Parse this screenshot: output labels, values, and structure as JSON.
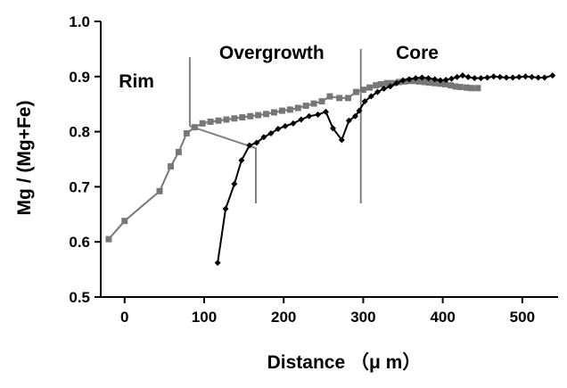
{
  "chart_data": {
    "type": "line",
    "title": "",
    "xlabel": "Distance （μ m）",
    "ylabel": "Mg / (Mg+Fe)",
    "xlim": [
      -30,
      545
    ],
    "ylim": [
      0.5,
      1.0
    ],
    "x_ticks": [
      0,
      100,
      200,
      300,
      400,
      500
    ],
    "x_tick_labels": [
      "0",
      "100",
      "200",
      "300",
      "400",
      "500"
    ],
    "y_ticks": [
      0.5,
      0.6,
      0.7,
      0.8,
      0.9,
      1.0
    ],
    "y_tick_labels": [
      "0.5",
      "0.6",
      "0.7",
      "0.8",
      "0.9",
      "1.0"
    ],
    "grid": false,
    "legend": "none",
    "region_labels": [
      {
        "id": "rim",
        "text": "Rim",
        "x": 15,
        "y": 0.88
      },
      {
        "id": "overgrowth",
        "text": "Overgrowth",
        "x": 185,
        "y": 0.932
      },
      {
        "id": "core",
        "text": "Core",
        "x": 368,
        "y": 0.932
      }
    ],
    "boundary_lines": [
      {
        "id": "rim-overgrowth",
        "points": [
          [
            82,
            0.935
          ],
          [
            82,
            0.81
          ]
        ]
      },
      {
        "id": "rim-overgrowth-trace",
        "points": [
          [
            82,
            0.81
          ],
          [
            165,
            0.77
          ],
          [
            165,
            0.67
          ]
        ]
      },
      {
        "id": "overgrowth-core",
        "points": [
          [
            297,
            0.95
          ],
          [
            297,
            0.67
          ]
        ]
      }
    ],
    "series": [
      {
        "id": "gray-profile",
        "color": "#777777",
        "marker": "square",
        "values": [
          [
            -20,
            0.605
          ],
          [
            0,
            0.638
          ],
          [
            44,
            0.692
          ],
          [
            58,
            0.737
          ],
          [
            68,
            0.763
          ],
          [
            78,
            0.797
          ],
          [
            88,
            0.808
          ],
          [
            98,
            0.815
          ],
          [
            108,
            0.818
          ],
          [
            118,
            0.82
          ],
          [
            128,
            0.822
          ],
          [
            138,
            0.824
          ],
          [
            148,
            0.826
          ],
          [
            158,
            0.828
          ],
          [
            168,
            0.83
          ],
          [
            178,
            0.832
          ],
          [
            188,
            0.835
          ],
          [
            198,
            0.838
          ],
          [
            208,
            0.84
          ],
          [
            218,
            0.843
          ],
          [
            228,
            0.847
          ],
          [
            238,
            0.851
          ],
          [
            248,
            0.855
          ],
          [
            258,
            0.864
          ],
          [
            270,
            0.861
          ],
          [
            281,
            0.861
          ],
          [
            291,
            0.872
          ],
          [
            300,
            0.876
          ],
          [
            308,
            0.88
          ],
          [
            316,
            0.884
          ],
          [
            322,
            0.886
          ],
          [
            330,
            0.888
          ],
          [
            337,
            0.888
          ],
          [
            345,
            0.89
          ],
          [
            352,
            0.891
          ],
          [
            358,
            0.892
          ],
          [
            364,
            0.892
          ],
          [
            370,
            0.891
          ],
          [
            377,
            0.89
          ],
          [
            383,
            0.889
          ],
          [
            390,
            0.888
          ],
          [
            397,
            0.887
          ],
          [
            403,
            0.886
          ],
          [
            410,
            0.884
          ],
          [
            416,
            0.882
          ],
          [
            422,
            0.881
          ],
          [
            430,
            0.88
          ],
          [
            436,
            0.879
          ],
          [
            444,
            0.879
          ]
        ]
      },
      {
        "id": "black-profile",
        "color": "#000000",
        "marker": "diamond",
        "values": [
          [
            117,
            0.562
          ],
          [
            127,
            0.66
          ],
          [
            138,
            0.705
          ],
          [
            147,
            0.748
          ],
          [
            157,
            0.775
          ],
          [
            166,
            0.78
          ],
          [
            175,
            0.79
          ],
          [
            184,
            0.797
          ],
          [
            193,
            0.805
          ],
          [
            202,
            0.81
          ],
          [
            212,
            0.815
          ],
          [
            222,
            0.822
          ],
          [
            232,
            0.828
          ],
          [
            243,
            0.831
          ],
          [
            253,
            0.836
          ],
          [
            262,
            0.806
          ],
          [
            273,
            0.785
          ],
          [
            282,
            0.82
          ],
          [
            290,
            0.828
          ],
          [
            295,
            0.838
          ],
          [
            302,
            0.855
          ],
          [
            310,
            0.864
          ],
          [
            318,
            0.872
          ],
          [
            326,
            0.878
          ],
          [
            334,
            0.882
          ],
          [
            342,
            0.888
          ],
          [
            350,
            0.893
          ],
          [
            358,
            0.895
          ],
          [
            366,
            0.897
          ],
          [
            374,
            0.898
          ],
          [
            382,
            0.897
          ],
          [
            390,
            0.895
          ],
          [
            397,
            0.893
          ],
          [
            404,
            0.894
          ],
          [
            411,
            0.896
          ],
          [
            418,
            0.899
          ],
          [
            425,
            0.902
          ],
          [
            432,
            0.899
          ],
          [
            440,
            0.897
          ],
          [
            448,
            0.897
          ],
          [
            456,
            0.898
          ],
          [
            464,
            0.9
          ],
          [
            472,
            0.899
          ],
          [
            480,
            0.898
          ],
          [
            488,
            0.898
          ],
          [
            496,
            0.899
          ],
          [
            504,
            0.9
          ],
          [
            512,
            0.899
          ],
          [
            520,
            0.898
          ],
          [
            528,
            0.898
          ],
          [
            538,
            0.902
          ]
        ]
      }
    ]
  }
}
